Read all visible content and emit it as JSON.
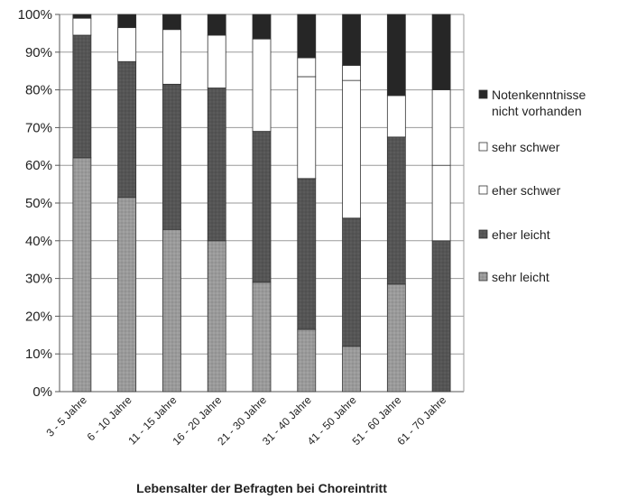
{
  "chart_data": {
    "type": "bar",
    "stacked": true,
    "normalized": true,
    "title": "",
    "xlabel": "Lebensalter der Befragten bei Choreintritt",
    "ylabel": "",
    "ylim": [
      0,
      100
    ],
    "yticks": [
      "0%",
      "10%",
      "20%",
      "30%",
      "40%",
      "50%",
      "60%",
      "70%",
      "80%",
      "90%",
      "100%"
    ],
    "grid": true,
    "legend_position": "right",
    "categories": [
      "3 - 5 Jahre",
      "6 - 10 Jahre",
      "11 - 15 Jahre",
      "16 - 20 Jahre",
      "21 - 30 Jahre",
      "31 - 40 Jahre",
      "41 - 50 Jahre",
      "51 - 60 Jahre",
      "61 - 70 Jahre"
    ],
    "series": [
      {
        "name": "sehr leicht",
        "color": "#9a9a9a",
        "values": [
          62,
          51.5,
          43,
          40,
          29,
          16.5,
          12,
          28.5,
          0
        ]
      },
      {
        "name": "eher leicht",
        "color": "#555555",
        "values": [
          32.5,
          36,
          38.5,
          40.5,
          40,
          40,
          34,
          39,
          40
        ]
      },
      {
        "name": "eher schwer",
        "color": "#ffffff",
        "values": [
          0,
          0,
          0,
          0,
          0,
          27,
          36.5,
          0,
          20
        ]
      },
      {
        "name": "sehr schwer",
        "color": "#ffffff",
        "values": [
          4.5,
          9,
          14.5,
          14,
          24.5,
          5,
          4,
          11,
          20
        ]
      },
      {
        "name": "Notenkenntnisse nicht vorhanden",
        "color": "#262626",
        "values": [
          1,
          3.5,
          4,
          5.5,
          6.5,
          11.5,
          13.5,
          21.5,
          20
        ]
      }
    ]
  }
}
